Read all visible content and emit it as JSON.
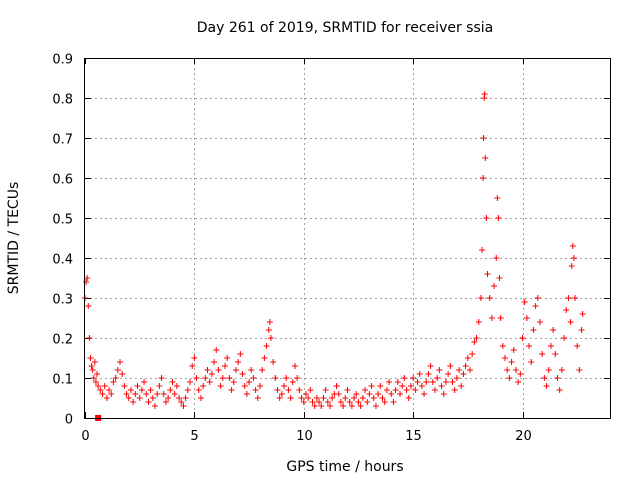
{
  "chart_data": {
    "type": "scatter",
    "title": "Day 261 of 2019, SRMTID for receiver ssia",
    "xlabel": "GPS time / hours",
    "ylabel": "SRMTID / TECUs",
    "xlim": [
      0,
      24
    ],
    "ylim": [
      0,
      0.9
    ],
    "x_ticks": [
      0,
      5,
      10,
      15,
      20
    ],
    "y_ticks": [
      0,
      0.1,
      0.2,
      0.3,
      0.4,
      0.5,
      0.6,
      0.7,
      0.8,
      0.9
    ],
    "x_tick_labels": [
      "0",
      "5",
      "10",
      "15",
      "20"
    ],
    "y_tick_labels": [
      "0",
      "0.1",
      "0.2",
      "0.3",
      "0.4",
      "0.5",
      "0.6",
      "0.7",
      "0.8",
      "0.9"
    ],
    "grid": true,
    "marker": "+",
    "color": "#ff0000",
    "outlier": {
      "x": 0.6,
      "y": 0.0
    },
    "series": [
      {
        "name": "ssia",
        "points": [
          [
            0.0,
            0.3
          ],
          [
            0.05,
            0.34
          ],
          [
            0.1,
            0.35
          ],
          [
            0.15,
            0.28
          ],
          [
            0.2,
            0.2
          ],
          [
            0.25,
            0.15
          ],
          [
            0.3,
            0.13
          ],
          [
            0.35,
            0.12
          ],
          [
            0.4,
            0.1
          ],
          [
            0.45,
            0.14
          ],
          [
            0.5,
            0.09
          ],
          [
            0.55,
            0.11
          ],
          [
            0.6,
            0.08
          ],
          [
            0.7,
            0.07
          ],
          [
            0.8,
            0.06
          ],
          [
            0.9,
            0.08
          ],
          [
            1.0,
            0.05
          ],
          [
            1.1,
            0.07
          ],
          [
            1.2,
            0.06
          ],
          [
            1.3,
            0.09
          ],
          [
            1.4,
            0.1
          ],
          [
            1.5,
            0.12
          ],
          [
            1.6,
            0.14
          ],
          [
            1.7,
            0.11
          ],
          [
            1.8,
            0.08
          ],
          [
            1.9,
            0.06
          ],
          [
            2.0,
            0.05
          ],
          [
            2.1,
            0.07
          ],
          [
            2.2,
            0.04
          ],
          [
            2.3,
            0.06
          ],
          [
            2.4,
            0.08
          ],
          [
            2.5,
            0.05
          ],
          [
            2.6,
            0.07
          ],
          [
            2.7,
            0.09
          ],
          [
            2.8,
            0.06
          ],
          [
            2.9,
            0.04
          ],
          [
            3.0,
            0.07
          ],
          [
            3.1,
            0.05
          ],
          [
            3.2,
            0.03
          ],
          [
            3.3,
            0.06
          ],
          [
            3.4,
            0.08
          ],
          [
            3.5,
            0.1
          ],
          [
            3.6,
            0.06
          ],
          [
            3.7,
            0.04
          ],
          [
            3.8,
            0.05
          ],
          [
            3.9,
            0.07
          ],
          [
            4.0,
            0.09
          ],
          [
            4.1,
            0.06
          ],
          [
            4.2,
            0.08
          ],
          [
            4.3,
            0.05
          ],
          [
            4.4,
            0.04
          ],
          [
            4.5,
            0.03
          ],
          [
            4.6,
            0.05
          ],
          [
            4.7,
            0.07
          ],
          [
            4.8,
            0.09
          ],
          [
            4.9,
            0.13
          ],
          [
            5.0,
            0.15
          ],
          [
            5.1,
            0.1
          ],
          [
            5.2,
            0.07
          ],
          [
            5.3,
            0.05
          ],
          [
            5.4,
            0.08
          ],
          [
            5.5,
            0.1
          ],
          [
            5.6,
            0.12
          ],
          [
            5.7,
            0.09
          ],
          [
            5.8,
            0.11
          ],
          [
            5.9,
            0.14
          ],
          [
            6.0,
            0.17
          ],
          [
            6.1,
            0.12
          ],
          [
            6.2,
            0.08
          ],
          [
            6.3,
            0.1
          ],
          [
            6.4,
            0.13
          ],
          [
            6.5,
            0.15
          ],
          [
            6.6,
            0.1
          ],
          [
            6.7,
            0.07
          ],
          [
            6.8,
            0.09
          ],
          [
            6.9,
            0.12
          ],
          [
            7.0,
            0.14
          ],
          [
            7.1,
            0.16
          ],
          [
            7.2,
            0.11
          ],
          [
            7.3,
            0.08
          ],
          [
            7.4,
            0.06
          ],
          [
            7.5,
            0.09
          ],
          [
            7.6,
            0.12
          ],
          [
            7.7,
            0.1
          ],
          [
            7.8,
            0.07
          ],
          [
            7.9,
            0.05
          ],
          [
            8.0,
            0.08
          ],
          [
            8.1,
            0.12
          ],
          [
            8.2,
            0.15
          ],
          [
            8.3,
            0.18
          ],
          [
            8.4,
            0.22
          ],
          [
            8.45,
            0.24
          ],
          [
            8.5,
            0.2
          ],
          [
            8.6,
            0.14
          ],
          [
            8.7,
            0.1
          ],
          [
            8.8,
            0.07
          ],
          [
            8.9,
            0.05
          ],
          [
            9.0,
            0.06
          ],
          [
            9.1,
            0.08
          ],
          [
            9.2,
            0.1
          ],
          [
            9.3,
            0.07
          ],
          [
            9.4,
            0.05
          ],
          [
            9.5,
            0.09
          ],
          [
            9.6,
            0.13
          ],
          [
            9.7,
            0.1
          ],
          [
            9.8,
            0.07
          ],
          [
            9.9,
            0.05
          ],
          [
            10.0,
            0.04
          ],
          [
            10.1,
            0.06
          ],
          [
            10.2,
            0.05
          ],
          [
            10.3,
            0.07
          ],
          [
            10.4,
            0.04
          ],
          [
            10.5,
            0.03
          ],
          [
            10.6,
            0.05
          ],
          [
            10.7,
            0.04
          ],
          [
            10.8,
            0.03
          ],
          [
            10.9,
            0.05
          ],
          [
            11.0,
            0.07
          ],
          [
            11.1,
            0.04
          ],
          [
            11.2,
            0.03
          ],
          [
            11.3,
            0.05
          ],
          [
            11.4,
            0.06
          ],
          [
            11.5,
            0.08
          ],
          [
            11.6,
            0.06
          ],
          [
            11.7,
            0.04
          ],
          [
            11.8,
            0.03
          ],
          [
            11.9,
            0.05
          ],
          [
            12.0,
            0.07
          ],
          [
            12.1,
            0.04
          ],
          [
            12.2,
            0.03
          ],
          [
            12.3,
            0.05
          ],
          [
            12.4,
            0.06
          ],
          [
            12.5,
            0.04
          ],
          [
            12.6,
            0.03
          ],
          [
            12.7,
            0.05
          ],
          [
            12.8,
            0.07
          ],
          [
            12.9,
            0.04
          ],
          [
            13.0,
            0.06
          ],
          [
            13.1,
            0.08
          ],
          [
            13.2,
            0.05
          ],
          [
            13.3,
            0.03
          ],
          [
            13.4,
            0.06
          ],
          [
            13.5,
            0.08
          ],
          [
            13.6,
            0.05
          ],
          [
            13.7,
            0.04
          ],
          [
            13.8,
            0.07
          ],
          [
            13.9,
            0.09
          ],
          [
            14.0,
            0.06
          ],
          [
            14.1,
            0.04
          ],
          [
            14.2,
            0.07
          ],
          [
            14.3,
            0.09
          ],
          [
            14.4,
            0.06
          ],
          [
            14.5,
            0.08
          ],
          [
            14.6,
            0.1
          ],
          [
            14.7,
            0.07
          ],
          [
            14.8,
            0.05
          ],
          [
            14.9,
            0.08
          ],
          [
            15.0,
            0.1
          ],
          [
            15.1,
            0.07
          ],
          [
            15.2,
            0.09
          ],
          [
            15.3,
            0.11
          ],
          [
            15.4,
            0.08
          ],
          [
            15.5,
            0.06
          ],
          [
            15.6,
            0.09
          ],
          [
            15.7,
            0.11
          ],
          [
            15.8,
            0.13
          ],
          [
            15.9,
            0.09
          ],
          [
            16.0,
            0.07
          ],
          [
            16.1,
            0.1
          ],
          [
            16.2,
            0.12
          ],
          [
            16.3,
            0.08
          ],
          [
            16.4,
            0.06
          ],
          [
            16.5,
            0.09
          ],
          [
            16.6,
            0.11
          ],
          [
            16.7,
            0.13
          ],
          [
            16.8,
            0.09
          ],
          [
            16.9,
            0.07
          ],
          [
            17.0,
            0.1
          ],
          [
            17.1,
            0.12
          ],
          [
            17.2,
            0.08
          ],
          [
            17.3,
            0.11
          ],
          [
            17.4,
            0.13
          ],
          [
            17.5,
            0.15
          ],
          [
            17.6,
            0.12
          ],
          [
            17.7,
            0.16
          ],
          [
            17.8,
            0.19
          ],
          [
            17.9,
            0.2
          ],
          [
            18.0,
            0.24
          ],
          [
            18.1,
            0.3
          ],
          [
            18.15,
            0.42
          ],
          [
            18.2,
            0.6
          ],
          [
            18.22,
            0.7
          ],
          [
            18.25,
            0.8
          ],
          [
            18.27,
            0.81
          ],
          [
            18.3,
            0.65
          ],
          [
            18.35,
            0.5
          ],
          [
            18.4,
            0.36
          ],
          [
            18.5,
            0.3
          ],
          [
            18.6,
            0.25
          ],
          [
            18.7,
            0.33
          ],
          [
            18.8,
            0.4
          ],
          [
            18.85,
            0.55
          ],
          [
            18.9,
            0.5
          ],
          [
            18.95,
            0.35
          ],
          [
            19.0,
            0.25
          ],
          [
            19.1,
            0.18
          ],
          [
            19.2,
            0.15
          ],
          [
            19.3,
            0.12
          ],
          [
            19.4,
            0.1
          ],
          [
            19.5,
            0.14
          ],
          [
            19.6,
            0.17
          ],
          [
            19.7,
            0.12
          ],
          [
            19.8,
            0.09
          ],
          [
            19.9,
            0.11
          ],
          [
            20.0,
            0.2
          ],
          [
            20.1,
            0.29
          ],
          [
            20.2,
            0.25
          ],
          [
            20.3,
            0.18
          ],
          [
            20.4,
            0.14
          ],
          [
            20.5,
            0.22
          ],
          [
            20.6,
            0.28
          ],
          [
            20.7,
            0.3
          ],
          [
            20.8,
            0.24
          ],
          [
            20.9,
            0.16
          ],
          [
            21.0,
            0.1
          ],
          [
            21.1,
            0.08
          ],
          [
            21.2,
            0.12
          ],
          [
            21.3,
            0.18
          ],
          [
            21.4,
            0.22
          ],
          [
            21.5,
            0.16
          ],
          [
            21.6,
            0.1
          ],
          [
            21.7,
            0.07
          ],
          [
            21.8,
            0.12
          ],
          [
            21.9,
            0.2
          ],
          [
            22.0,
            0.27
          ],
          [
            22.1,
            0.3
          ],
          [
            22.2,
            0.24
          ],
          [
            22.25,
            0.38
          ],
          [
            22.3,
            0.43
          ],
          [
            22.35,
            0.4
          ],
          [
            22.4,
            0.3
          ],
          [
            22.5,
            0.18
          ],
          [
            22.6,
            0.12
          ],
          [
            22.7,
            0.22
          ],
          [
            22.75,
            0.26
          ]
        ]
      }
    ]
  }
}
